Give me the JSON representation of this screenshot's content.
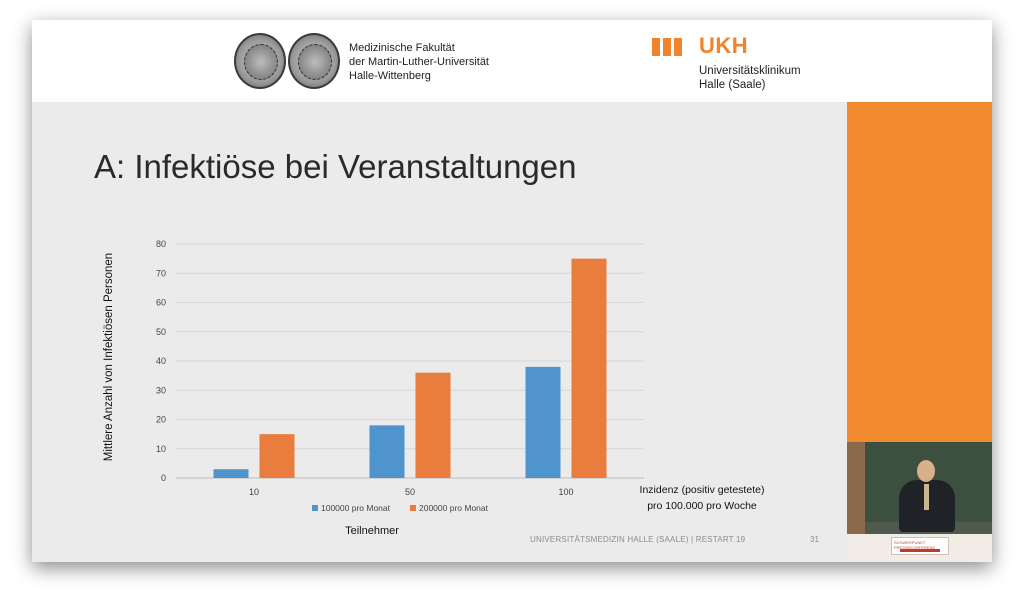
{
  "header": {
    "faculty_lines": [
      "Medizinische Fakultät",
      "der Martin-Luther-Universität",
      "Halle-Wittenberg"
    ],
    "ukh_logo": "UKH",
    "ukh_lines": [
      "Universitätsklinikum",
      "Halle (Saale)"
    ],
    "brand_color": "#f0832b"
  },
  "slide": {
    "title": "A: Infektiöse bei Veranstaltungen",
    "footer": "UNIVERSITÄTSMEDIZIN HALLE (SAALE) | RESTART 19",
    "page_number": "31"
  },
  "speaker_video": {
    "name_card_lines": [
      "SCHWERPUNKT",
      "PRESSEKONFERENZ"
    ]
  },
  "chart_data": {
    "type": "bar",
    "categories": [
      "10",
      "50",
      "100"
    ],
    "series": [
      {
        "name": "100000 pro Monat",
        "values": [
          3,
          18,
          38
        ],
        "color": "#4f94cd"
      },
      {
        "name": "200000 pro Monat",
        "values": [
          15,
          36,
          75
        ],
        "color": "#e97d3d"
      }
    ],
    "ylim": [
      0,
      80
    ],
    "yticks": [
      0,
      10,
      20,
      30,
      40,
      50,
      60,
      70,
      80
    ],
    "ylabel": "Mittlere Anzahl von Infektiösen Personen",
    "xlabel": "Teilnehmer",
    "annotation_lines": [
      "Inzidenz (positiv getestete)",
      "pro 100.000 pro Woche"
    ],
    "grid": true,
    "legend": "bottom"
  }
}
